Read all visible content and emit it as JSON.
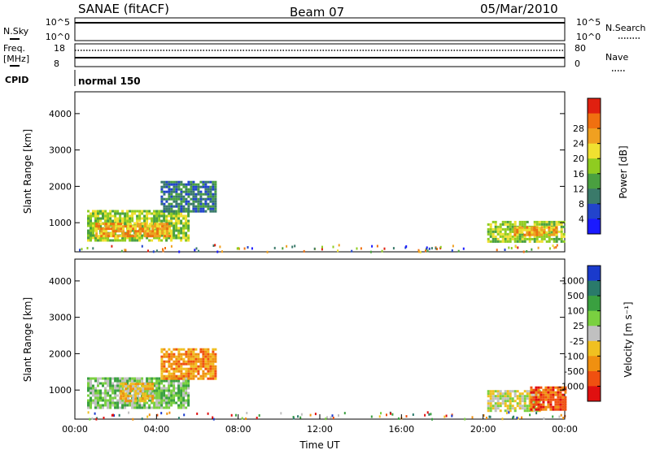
{
  "header": {
    "title": "SANAE (fitACF)",
    "beam": "Beam 07",
    "date": "05/Mar/2010"
  },
  "strips": {
    "nsky_label": "N.Sky",
    "nsearch_label": "N.Search",
    "nsky_ticks": [
      "10^5",
      "10^0"
    ],
    "nsearch_ticks": [
      "10^5",
      "10^0"
    ],
    "freq_label": "Freq.",
    "freq_unit": "[MHz]",
    "freq_ticks": [
      "18",
      "8"
    ],
    "nave_label": "Nave",
    "nave_ticks": [
      "80",
      "0"
    ],
    "cpid_label": "CPID",
    "cpid_value": "normal 150"
  },
  "chart_data": [
    {
      "type": "heatmap",
      "panel": "power",
      "ylabel": "Slant Range [km]",
      "xlabel": "",
      "yticks": [
        "1000",
        "2000",
        "3000",
        "4000"
      ],
      "ylim": [
        200,
        4600
      ],
      "xlim": [
        0,
        24
      ],
      "colorbar_label": "Power [dB]",
      "colorbar_ticks": [
        "4",
        "8",
        "12",
        "16",
        "20",
        "24",
        "28"
      ],
      "colors": [
        "#1a1aff",
        "#2244cc",
        "#3a7a6a",
        "#4aa040",
        "#8fcc20",
        "#f0e030",
        "#f0a020",
        "#f07010",
        "#e02010"
      ],
      "regions": [
        {
          "t0": 0.6,
          "t1": 5.6,
          "r0": 480,
          "r1": 1350,
          "level": 4
        },
        {
          "t0": 1.0,
          "t1": 4.6,
          "r0": 620,
          "r1": 1000,
          "level": 6
        },
        {
          "t0": 4.2,
          "t1": 6.9,
          "r0": 1300,
          "r1": 2150,
          "level": 2
        },
        {
          "t0": 20.2,
          "t1": 24.0,
          "r0": 450,
          "r1": 1050,
          "level": 4
        },
        {
          "t0": 21.5,
          "t1": 23.6,
          "r0": 650,
          "r1": 900,
          "level": 6
        }
      ]
    },
    {
      "type": "heatmap",
      "panel": "velocity",
      "ylabel": "Slant Range [km]",
      "xlabel": "Time UT",
      "xticks": [
        "00:00",
        "04:00",
        "08:00",
        "12:00",
        "16:00",
        "20:00",
        "00:00"
      ],
      "yticks": [
        "1000",
        "2000",
        "3000",
        "4000"
      ],
      "ylim": [
        200,
        4600
      ],
      "xlim": [
        0,
        24
      ],
      "colorbar_label": "Velocity [m s^-1]",
      "colorbar_ticks": [
        "1000",
        "500",
        "100",
        "25",
        "-25",
        "-100",
        "-500",
        "-1000"
      ],
      "colors": [
        "#1a3acc",
        "#2a7a6a",
        "#3aa040",
        "#7ad040",
        "#c0c0c0",
        "#f0c020",
        "#f09010",
        "#f05010",
        "#e01010"
      ],
      "regions": [
        {
          "t0": 0.6,
          "t1": 5.6,
          "r0": 480,
          "r1": 1350,
          "level": 3
        },
        {
          "t0": 2.2,
          "t1": 3.8,
          "r0": 700,
          "r1": 1200,
          "level": 5
        },
        {
          "t0": 4.2,
          "t1": 6.9,
          "r0": 1300,
          "r1": 2150,
          "level": 6
        },
        {
          "t0": 20.2,
          "t1": 22.8,
          "r0": 450,
          "r1": 1000,
          "level": 4
        },
        {
          "t0": 22.3,
          "t1": 24.0,
          "r0": 450,
          "r1": 1100,
          "level": 7
        }
      ]
    }
  ]
}
